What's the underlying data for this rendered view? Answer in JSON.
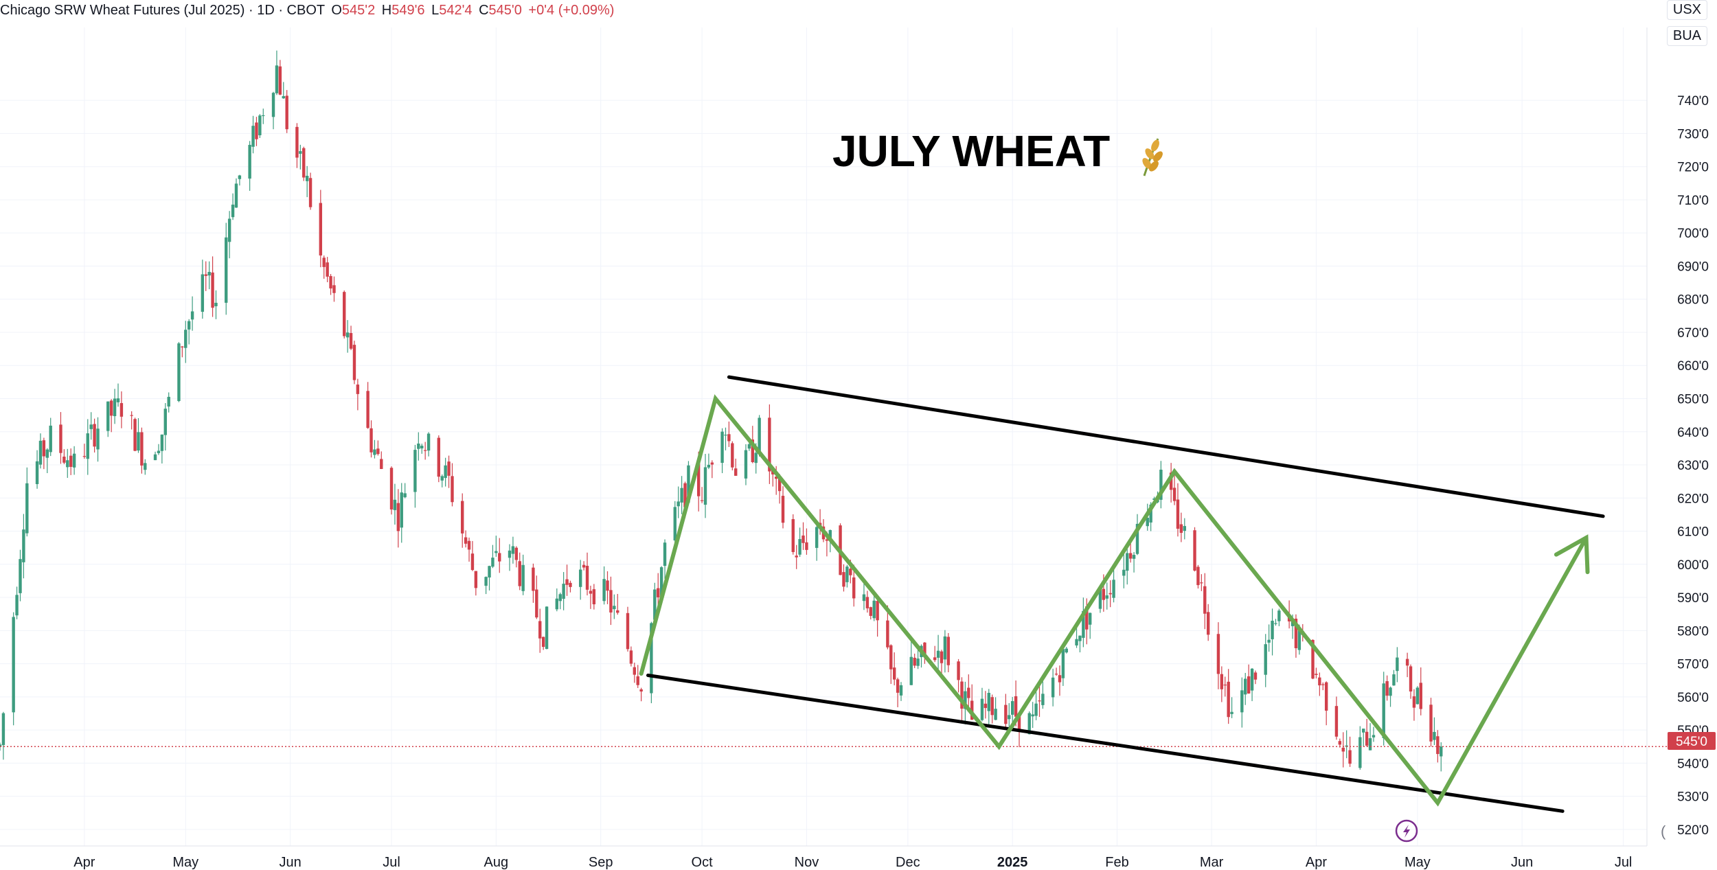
{
  "header": {
    "symbol_title": "Chicago SRW Wheat Futures (Jul 2025) · 1D · CBOT",
    "open_label": "O",
    "open_value": "545'2",
    "high_label": "H",
    "high_value": "549'6",
    "low_label": "L",
    "low_value": "542'4",
    "close_label": "C",
    "close_value": "545'0",
    "change_value": "+0'4 (+0.09%)"
  },
  "currency_button": "USX",
  "unit_button": "BUA",
  "colors": {
    "up": "#3d9c7f",
    "down": "#d1404b",
    "trend": "#6aa84f",
    "channel": "#000000",
    "annotation_icon": "#7b2d8e"
  },
  "icons": [
    "wheat-icon",
    "lightning-circle-icon",
    "paren-icon"
  ],
  "chart_data": {
    "type": "candlestick",
    "title": "JULY WHEAT",
    "price_axis": {
      "ticks": [
        "740'0",
        "730'0",
        "720'0",
        "710'0",
        "700'0",
        "690'0",
        "680'0",
        "670'0",
        "660'0",
        "650'0",
        "640'0",
        "630'0",
        "620'0",
        "610'0",
        "600'0",
        "590'0",
        "580'0",
        "570'0",
        "560'0",
        "550'0",
        "540'0",
        "530'0",
        "520'0"
      ],
      "range": [
        515,
        762
      ],
      "current_price": 545.0,
      "current_label": "545'0"
    },
    "time_axis": {
      "ticks": [
        {
          "label": "Apr",
          "date": "2024-04-01"
        },
        {
          "label": "May",
          "date": "2024-05-01"
        },
        {
          "label": "Jun",
          "date": "2024-06-01"
        },
        {
          "label": "Jul",
          "date": "2024-07-01"
        },
        {
          "label": "Aug",
          "date": "2024-08-01"
        },
        {
          "label": "Sep",
          "date": "2024-09-01"
        },
        {
          "label": "Oct",
          "date": "2024-10-01"
        },
        {
          "label": "Nov",
          "date": "2024-11-01"
        },
        {
          "label": "Dec",
          "date": "2024-12-01"
        },
        {
          "label": "2025",
          "date": "2025-01-01",
          "bold": true
        },
        {
          "label": "Feb",
          "date": "2025-02-01"
        },
        {
          "label": "Mar",
          "date": "2025-03-01"
        },
        {
          "label": "Apr",
          "date": "2025-04-01"
        },
        {
          "label": "May",
          "date": "2025-05-01"
        },
        {
          "label": "Jun",
          "date": "2025-06-01"
        },
        {
          "label": "Jul",
          "date": "2025-07-01"
        }
      ],
      "range": [
        "2024-03-07",
        "2025-07-08"
      ]
    },
    "price_path": [
      {
        "date": "2024-03-07",
        "close": 545
      },
      {
        "date": "2024-03-15",
        "close": 625
      },
      {
        "date": "2024-03-22",
        "close": 638
      },
      {
        "date": "2024-03-29",
        "close": 630
      },
      {
        "date": "2024-04-05",
        "close": 642
      },
      {
        "date": "2024-04-12",
        "close": 648
      },
      {
        "date": "2024-04-19",
        "close": 632
      },
      {
        "date": "2024-04-24",
        "close": 640
      },
      {
        "date": "2024-05-01",
        "close": 672
      },
      {
        "date": "2024-05-07",
        "close": 685
      },
      {
        "date": "2024-05-10",
        "close": 680
      },
      {
        "date": "2024-05-15",
        "close": 712
      },
      {
        "date": "2024-05-20",
        "close": 725
      },
      {
        "date": "2024-05-24",
        "close": 738
      },
      {
        "date": "2024-05-28",
        "close": 750
      },
      {
        "date": "2024-06-01",
        "close": 728
      },
      {
        "date": "2024-06-06",
        "close": 715
      },
      {
        "date": "2024-06-10",
        "close": 692
      },
      {
        "date": "2024-06-17",
        "close": 670
      },
      {
        "date": "2024-06-24",
        "close": 640
      },
      {
        "date": "2024-07-03",
        "close": 615
      },
      {
        "date": "2024-07-09",
        "close": 640
      },
      {
        "date": "2024-07-12",
        "close": 635
      },
      {
        "date": "2024-07-18",
        "close": 625
      },
      {
        "date": "2024-07-26",
        "close": 595
      },
      {
        "date": "2024-08-05",
        "close": 605
      },
      {
        "date": "2024-08-15",
        "close": 580
      },
      {
        "date": "2024-08-23",
        "close": 598
      },
      {
        "date": "2024-09-03",
        "close": 590
      },
      {
        "date": "2024-09-13",
        "close": 565
      },
      {
        "date": "2024-09-20",
        "close": 605
      },
      {
        "date": "2024-09-27",
        "close": 625
      },
      {
        "date": "2024-10-01",
        "close": 622
      },
      {
        "date": "2024-10-07",
        "close": 645
      },
      {
        "date": "2024-10-12",
        "close": 625
      },
      {
        "date": "2024-10-18",
        "close": 640
      },
      {
        "date": "2024-10-28",
        "close": 603
      },
      {
        "date": "2024-11-05",
        "close": 612
      },
      {
        "date": "2024-11-12",
        "close": 598
      },
      {
        "date": "2024-11-20",
        "close": 588
      },
      {
        "date": "2024-11-27",
        "close": 563
      },
      {
        "date": "2024-12-06",
        "close": 572
      },
      {
        "date": "2024-12-12",
        "close": 575
      },
      {
        "date": "2024-12-20",
        "close": 553
      },
      {
        "date": "2024-12-27",
        "close": 558
      },
      {
        "date": "2025-01-07",
        "close": 552
      },
      {
        "date": "2025-01-13",
        "close": 565
      },
      {
        "date": "2025-01-20",
        "close": 580
      },
      {
        "date": "2025-01-27",
        "close": 590
      },
      {
        "date": "2025-02-04",
        "close": 603
      },
      {
        "date": "2025-02-12",
        "close": 622
      },
      {
        "date": "2025-02-14",
        "close": 625
      },
      {
        "date": "2025-02-24",
        "close": 602
      },
      {
        "date": "2025-03-03",
        "close": 570
      },
      {
        "date": "2025-03-07",
        "close": 555
      },
      {
        "date": "2025-03-14",
        "close": 568
      },
      {
        "date": "2025-03-22",
        "close": 585
      },
      {
        "date": "2025-03-28",
        "close": 575
      },
      {
        "date": "2025-04-04",
        "close": 560
      },
      {
        "date": "2025-04-11",
        "close": 540
      },
      {
        "date": "2025-04-18",
        "close": 552
      },
      {
        "date": "2025-04-25",
        "close": 570
      },
      {
        "date": "2025-05-02",
        "close": 558
      },
      {
        "date": "2025-05-08",
        "close": 545
      }
    ],
    "annotations": {
      "channel_upper": [
        {
          "date": "2024-10-09",
          "price": 656.5
        },
        {
          "date": "2025-06-25",
          "price": 614.5
        }
      ],
      "channel_lower": [
        {
          "date": "2024-09-15",
          "price": 566.5
        },
        {
          "date": "2025-06-13",
          "price": 525.5
        }
      ],
      "zigzag": [
        {
          "date": "2024-09-13",
          "price": 567
        },
        {
          "date": "2024-10-05",
          "price": 650
        },
        {
          "date": "2024-12-28",
          "price": 545
        },
        {
          "date": "2025-02-18",
          "price": 628
        },
        {
          "date": "2025-05-07",
          "price": 528
        },
        {
          "date": "2025-06-20",
          "price": 608
        }
      ]
    }
  }
}
